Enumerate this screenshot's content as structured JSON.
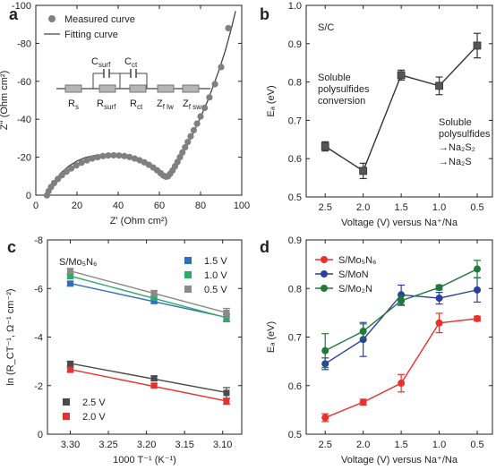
{
  "chart_data": [
    {
      "panel": "a",
      "type": "scatter",
      "xlabel": "Z' (Ohm cm²)",
      "ylabel": "Z'' (Ohm cm²)",
      "xlim": [
        0,
        100
      ],
      "ylim": [
        0,
        -100
      ],
      "y_reversed": true,
      "xticks": [
        "0",
        "20",
        "40",
        "60",
        "80",
        "100"
      ],
      "yticks": [
        "0",
        "-20",
        "-40",
        "-60",
        "-80",
        "-100"
      ],
      "legend": {
        "position": "top-left",
        "entries": [
          "Measured curve",
          "Fitting curve"
        ]
      },
      "circuit_labels": [
        "C",
        "surf",
        "C",
        "ct",
        "R",
        "s",
        "R",
        "surf",
        "R",
        "ct",
        "Z",
        "f lw",
        "Z",
        "f sw"
      ],
      "series": [
        {
          "name": "Measured curve",
          "x": [
            5.4,
            6.2,
            7.4,
            8.9,
            10.7,
            12.7,
            14.9,
            17.2,
            19.7,
            22.2,
            24.8,
            27.4,
            30.0,
            32.6,
            35.2,
            37.8,
            40.4,
            43.0,
            45.5,
            48.0,
            50.4,
            52.7,
            54.9,
            57.0,
            58.9,
            60.6,
            62.0,
            63.2,
            64.2,
            65.2,
            66.4,
            67.6,
            68.8,
            70.0,
            71.2,
            72.5,
            73.8,
            75.2,
            76.7,
            78.3,
            80.0,
            82.0,
            84.3,
            87.0,
            90.0,
            93.5
          ],
          "y": [
            0.1,
            -2.1,
            -4.3,
            -6.4,
            -8.5,
            -10.5,
            -12.4,
            -14.1,
            -15.7,
            -17.1,
            -18.3,
            -19.3,
            -20.0,
            -20.6,
            -20.9,
            -21.0,
            -20.9,
            -20.6,
            -20.1,
            -19.3,
            -18.4,
            -17.3,
            -16.0,
            -14.6,
            -13.1,
            -11.6,
            -10.3,
            -9.7,
            -10.0,
            -11.2,
            -13.0,
            -15.2,
            -17.5,
            -20.0,
            -22.5,
            -25.2,
            -28.0,
            -31.0,
            -34.2,
            -37.7,
            -41.5,
            -46.0,
            -51.5,
            -58.5,
            -67.5,
            -88.0
          ]
        },
        {
          "name": "Fitting curve",
          "x": [
            5.2,
            7.0,
            9.5,
            12.5,
            16.0,
            20.0,
            24.0,
            28.0,
            32.0,
            36.0,
            40.0,
            44.0,
            48.0,
            52.0,
            55.5,
            58.5,
            61.0,
            62.7,
            63.8,
            64.8,
            66.0,
            68.5,
            71.0,
            74.0,
            77.0,
            80.0,
            83.0,
            86.0,
            89.0,
            92.0,
            95.0,
            97.0
          ],
          "y": [
            0.5,
            -3.8,
            -8.0,
            -12.0,
            -15.3,
            -18.0,
            -19.8,
            -20.8,
            -21.2,
            -21.2,
            -20.9,
            -20.2,
            -19.0,
            -17.3,
            -15.2,
            -12.8,
            -10.8,
            -9.6,
            -9.5,
            -10.4,
            -12.0,
            -16.5,
            -21.5,
            -27.5,
            -34.0,
            -41.0,
            -48.5,
            -57.0,
            -66.0,
            -76.0,
            -88.0,
            -97.0
          ]
        }
      ]
    },
    {
      "panel": "b",
      "type": "line",
      "xlabel": "Voltage (V) versus Na⁺/Na",
      "ylabel": "Eₐ (eV)",
      "x_reversed": true,
      "xlim": [
        2.75,
        0.3
      ],
      "ylim": [
        0.5,
        1.0
      ],
      "xticks": [
        "2.5",
        "2.0",
        "1.5",
        "1.0",
        "0.5"
      ],
      "yticks": [
        "0.5",
        "0.6",
        "0.7",
        "0.8",
        "0.9",
        "1.0"
      ],
      "annotations": [
        "S/C",
        "Soluble polysulfides conversion",
        "Soluble polysulfides",
        "→Na₂S₂",
        "→Na₂S"
      ],
      "series": [
        {
          "x": [
            2.5,
            2.0,
            1.5,
            1.0,
            0.5
          ],
          "y": [
            0.632,
            0.568,
            0.818,
            0.79,
            0.895
          ],
          "err": [
            0.012,
            0.02,
            0.013,
            0.023,
            0.032
          ],
          "color": "#555555"
        }
      ]
    },
    {
      "panel": "c",
      "type": "scatter",
      "title": "S/Mo₅N₆",
      "xlabel": "1000 T⁻¹ (K⁻¹)",
      "ylabel": "ln (R_CT⁻¹, Ω⁻¹ cm⁻²)",
      "x_reversed": true,
      "xlim": [
        3.33,
        3.075
      ],
      "ylim": [
        0,
        -8
      ],
      "y_reversed": true,
      "xticks": [
        "3.30",
        "3.25",
        "3.20",
        "3.15",
        "3.10"
      ],
      "yticks": [
        "-8",
        "-6",
        "-4",
        "-2",
        "0"
      ],
      "legend_top": {
        "position": "top-right",
        "entries": [
          "1.5 V",
          "1.0 V",
          "0.5 V"
        ]
      },
      "legend_bottom": {
        "position": "bottom-left",
        "entries": [
          "2.5 V",
          "2.0 V"
        ]
      },
      "x": [
        3.3,
        3.19,
        3.095
      ],
      "series": [
        {
          "name": "1.5 V",
          "y": [
            -6.2,
            -5.48,
            -4.8
          ],
          "err": [
            0.08,
            0.08,
            0.15
          ],
          "color": "#2f6fbd"
        },
        {
          "name": "1.0 V",
          "y": [
            -6.5,
            -5.62,
            -4.78
          ],
          "err": [
            0.08,
            0.08,
            0.15
          ],
          "color": "#2eaa6a"
        },
        {
          "name": "0.5 V",
          "y": [
            -6.72,
            -5.8,
            -5.0
          ],
          "err": [
            0.1,
            0.12,
            0.18
          ],
          "color": "#8a8a8a"
        },
        {
          "name": "2.5 V",
          "y": [
            -2.9,
            -2.3,
            -1.7
          ],
          "err": [
            0.1,
            0.1,
            0.22
          ],
          "color": "#4a4a4a"
        },
        {
          "name": "2.0 V",
          "y": [
            -2.65,
            -2.0,
            -1.35
          ],
          "err": [
            0.08,
            0.08,
            0.12
          ],
          "color": "#e8312f"
        }
      ]
    },
    {
      "panel": "d",
      "type": "line",
      "xlabel": "Voltage (V) versus Na⁺/Na",
      "ylabel": "Eₐ (eV)",
      "x_reversed": true,
      "xlim": [
        2.75,
        0.3
      ],
      "ylim": [
        0.5,
        0.9
      ],
      "xticks": [
        "2.5",
        "2.0",
        "1.5",
        "1.0",
        "0.5"
      ],
      "yticks": [
        "0.5",
        "0.6",
        "0.7",
        "0.8",
        "0.9"
      ],
      "legend": {
        "position": "top-left",
        "entries": [
          "S/Mo₅N₆",
          "S/MoN",
          "S/Mo₂N"
        ]
      },
      "x": [
        2.5,
        2.0,
        1.5,
        1.0,
        0.5
      ],
      "series": [
        {
          "name": "S/Mo₅N₆",
          "y": [
            0.534,
            0.566,
            0.605,
            0.729,
            0.738
          ],
          "err": [
            0.008,
            0.006,
            0.018,
            0.02,
            0.005
          ],
          "color": "#e8312f"
        },
        {
          "name": "S/MoN",
          "y": [
            0.645,
            0.695,
            0.787,
            0.78,
            0.797
          ],
          "err": [
            0.012,
            0.035,
            0.02,
            0.012,
            0.025
          ],
          "color": "#2b3f9e"
        },
        {
          "name": "S/Mo₂N",
          "y": [
            0.672,
            0.712,
            0.775,
            0.802,
            0.84
          ],
          "err": [
            0.035,
            0.015,
            0.01,
            0.005,
            0.018
          ],
          "color": "#1f7a3a"
        }
      ]
    }
  ],
  "panel_labels": [
    "a",
    "b",
    "c",
    "d"
  ]
}
